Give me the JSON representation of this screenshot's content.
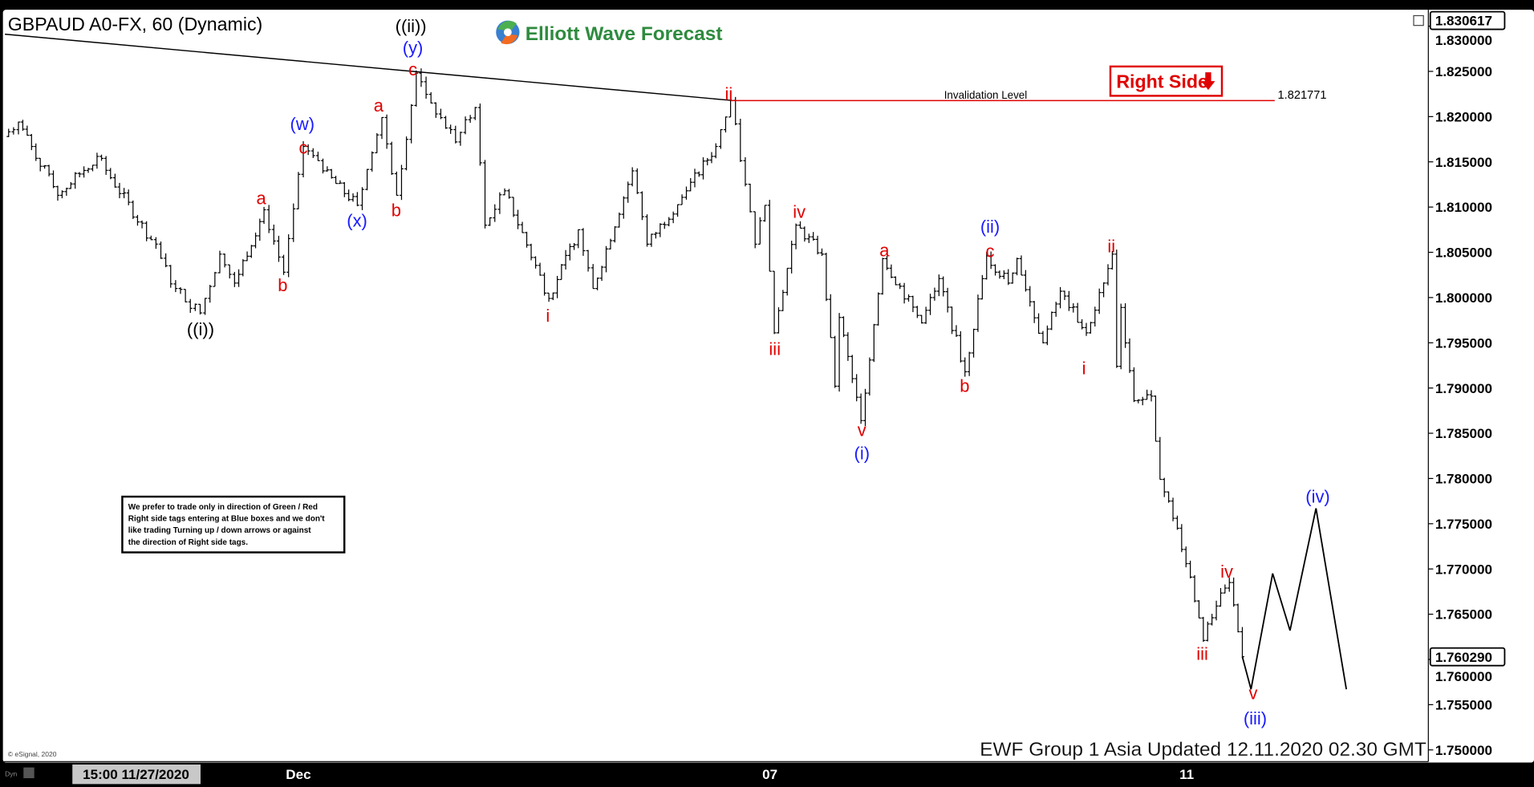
{
  "header": {
    "title": "GBPAUD A0-FX, 60 (Dynamic)",
    "logo_text": "Elliott Wave Forecast"
  },
  "colors": {
    "red": "#e00000",
    "blue": "#1a1aff",
    "black": "#000000",
    "logo_green": "#2e8b3e",
    "background": "#ffffff"
  },
  "right_side_tag": {
    "label": "Right Side",
    "icon": "arrow-down-icon"
  },
  "invalidation": {
    "label": "Invalidation Level",
    "value": "1.821771"
  },
  "disclaimer": [
    "We prefer to trade only in direction of Green / Red",
    "Right side tags entering at Blue boxes and we don't",
    "like trading Turning up / down arrows or against",
    "the direction of Right side tags."
  ],
  "footer": {
    "updated": "EWF Group 1 Asia Updated 12.11.2020 02.30 GMT",
    "copyright": "© eSignal, 2020",
    "cursor_time": "15:00 11/27/2020",
    "dyn": "Dyn"
  },
  "chart_data": {
    "type": "ohlc-bar",
    "symbol": "GBPAUD",
    "interval": "60",
    "price_axis_ticks": [
      "1.830000",
      "1.825000",
      "1.820000",
      "1.815000",
      "1.810000",
      "1.805000",
      "1.800000",
      "1.795000",
      "1.790000",
      "1.785000",
      "1.780000",
      "1.775000",
      "1.770000",
      "1.765000",
      "1.760000",
      "1.755000",
      "1.750000"
    ],
    "top_price": "1.830617",
    "last_price": "1.760290",
    "time_axis_ticks": [
      "Dec",
      "07",
      "11"
    ],
    "ylim": [
      1.749,
      1.8315
    ],
    "price_path": [
      [
        "11-26 12",
        1.8178
      ],
      [
        "11-26 15",
        1.8194
      ],
      [
        "11-26 23",
        1.8113
      ],
      [
        "11-27 07",
        1.8156
      ],
      [
        "11-27 18",
        1.8064
      ],
      [
        "11-27 23",
        1.801
      ],
      [
        "11-30 04",
        1.7983
      ],
      [
        "11-30 08",
        1.8048
      ],
      [
        "11-30 11",
        1.8016
      ],
      [
        "11-30 17",
        1.8097
      ],
      [
        "11-30 21",
        1.8028
      ],
      [
        "12-01 01",
        1.8167
      ],
      [
        "12-01 05",
        1.814
      ],
      [
        "12-01 12",
        1.8102
      ],
      [
        "12-01 17",
        1.8199
      ],
      [
        "12-01 20",
        1.8113
      ],
      [
        "12-02 00",
        1.8248
      ],
      [
        "12-02 03",
        1.8215
      ],
      [
        "12-02 08",
        1.8172
      ],
      [
        "12-02 12",
        1.821
      ],
      [
        "12-02 14",
        1.808
      ],
      [
        "12-02 18",
        1.8118
      ],
      [
        "12-03 03",
        1.7999
      ],
      [
        "12-03 09",
        1.8075
      ],
      [
        "12-03 12",
        1.801
      ],
      [
        "12-03 20",
        1.814
      ],
      [
        "12-03 23",
        1.8059
      ],
      [
        "12-04 07",
        1.8118
      ],
      [
        "12-04 13",
        1.8167
      ],
      [
        "12-04 16",
        1.8218
      ],
      [
        "12-04 21",
        1.8059
      ],
      [
        "12-04 23",
        1.8102
      ],
      [
        "12-07 01",
        1.7961
      ],
      [
        "12-07 06",
        1.808
      ],
      [
        "12-07 12",
        1.8048
      ],
      [
        "12-07 15",
        1.7902
      ],
      [
        "12-07 16",
        1.7978
      ],
      [
        "12-07 21",
        1.7864
      ],
      [
        "12-08 02",
        1.8043
      ],
      [
        "12-08 11",
        1.7972
      ],
      [
        "12-08 15",
        1.8021
      ],
      [
        "12-08 21",
        1.7918
      ],
      [
        "12-09 02",
        1.8046
      ],
      [
        "12-09 07",
        1.8016
      ],
      [
        "12-09 09",
        1.8043
      ],
      [
        "12-09 15",
        1.795
      ],
      [
        "12-09 19",
        1.8007
      ],
      [
        "12-10 01",
        1.7961
      ],
      [
        "12-10 05",
        1.8016
      ],
      [
        "12-10 07",
        1.8048
      ],
      [
        "12-10 08",
        1.7924
      ],
      [
        "12-10 09",
        1.7989
      ],
      [
        "12-10 12",
        1.7886
      ],
      [
        "12-10 16",
        1.7891
      ],
      [
        "12-10 18",
        1.7799
      ],
      [
        "12-10 22",
        1.7745
      ],
      [
        "12-11 01",
        1.7691
      ],
      [
        "12-11 04",
        1.7621
      ],
      [
        "12-11 07",
        1.7659
      ],
      [
        "12-11 10",
        1.7685
      ],
      [
        "12-11 13",
        1.7603
      ]
    ],
    "projection_path": [
      [
        "12-11 13",
        1.7603
      ],
      [
        "12-11 15",
        1.7567
      ],
      [
        "12-11 20",
        1.7695
      ],
      [
        "12-12 00",
        1.7632
      ],
      [
        "12-12 06",
        1.7767
      ],
      [
        "12-12 13",
        1.7567
      ]
    ],
    "trendline": [
      [
        "11-26 12",
        1.8283
      ],
      [
        "12-04 16",
        1.8218
      ]
    ],
    "wave_labels": [
      {
        "text": "((i))",
        "color": "black"
      },
      {
        "text": "((ii))",
        "color": "black"
      },
      {
        "text": "(y)",
        "color": "blue"
      },
      {
        "text": "c",
        "color": "red"
      },
      {
        "text": "(w)",
        "color": "blue"
      },
      {
        "text": "c",
        "color": "red"
      },
      {
        "text": "a",
        "color": "red"
      },
      {
        "text": "b",
        "color": "red"
      },
      {
        "text": "(x)",
        "color": "blue"
      },
      {
        "text": "a",
        "color": "red"
      },
      {
        "text": "b",
        "color": "red"
      },
      {
        "text": "i",
        "color": "red"
      },
      {
        "text": "ii",
        "color": "red"
      },
      {
        "text": "iii",
        "color": "red"
      },
      {
        "text": "iv",
        "color": "red"
      },
      {
        "text": "v",
        "color": "red"
      },
      {
        "text": "(i)",
        "color": "blue"
      },
      {
        "text": "a",
        "color": "red"
      },
      {
        "text": "b",
        "color": "red"
      },
      {
        "text": "(ii)",
        "color": "blue"
      },
      {
        "text": "c",
        "color": "red"
      },
      {
        "text": "i",
        "color": "red"
      },
      {
        "text": "ii",
        "color": "red"
      },
      {
        "text": "iii",
        "color": "red"
      },
      {
        "text": "iv",
        "color": "red"
      },
      {
        "text": "v",
        "color": "red"
      },
      {
        "text": "(iii)",
        "color": "blue"
      },
      {
        "text": "(iv)",
        "color": "blue"
      }
    ]
  }
}
